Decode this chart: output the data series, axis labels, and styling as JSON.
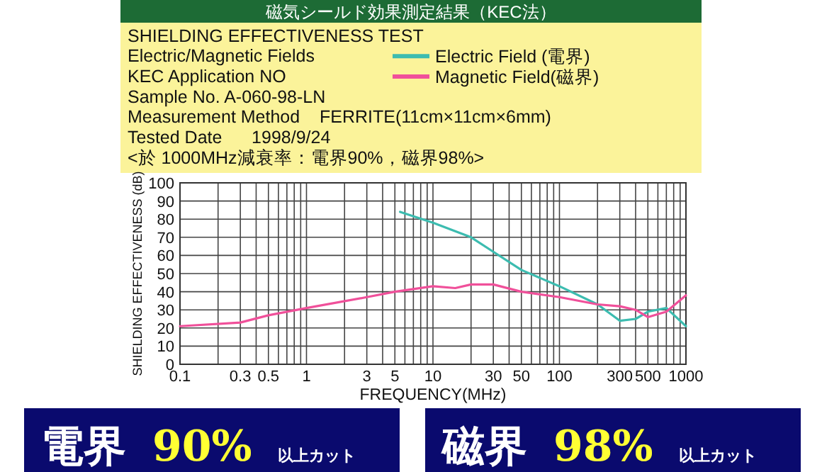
{
  "chart_data": {
    "type": "line",
    "title": "磁気シールド効果測定結果（KEC法）",
    "subtitle": "SHIELDING EFFECTIVENESS TEST",
    "xlabel": "FREQUENCY(MHz)",
    "ylabel": "SHIELDING EFFECTIVENESS (dB)",
    "annotations": [
      "Electric/Magnetic Fields",
      "KEC Application NO",
      "Sample No. A-060-98-LN",
      "Measurement Method    FERRITE(11cm×11cm×6mm)",
      "Tested Date      1998/9/24",
      "<於 1000MHz減衰率：電界90%，磁界98%>",
      "電界 90% 以上カット",
      "磁界 98% 以上カット"
    ],
    "log": "x",
    "xlim": [
      0.1,
      1000
    ],
    "xticks": [
      0.1,
      {
        "value": 0.2,
        "label": null
      },
      0.3,
      {
        "value": 0.4,
        "label": null
      },
      0.5,
      {
        "value": 0.6,
        "label": null
      },
      {
        "value": 0.7,
        "label": null
      },
      {
        "value": 0.8,
        "label": null
      },
      {
        "value": 0.9,
        "label": null
      },
      1,
      {
        "value": 2,
        "label": null
      },
      3,
      {
        "value": 4,
        "label": null
      },
      5,
      {
        "value": 6,
        "label": null
      },
      {
        "value": 7,
        "label": null
      },
      {
        "value": 8,
        "label": null
      },
      {
        "value": 9,
        "label": null
      },
      10,
      {
        "value": 20,
        "label": null
      },
      30,
      {
        "value": 40,
        "label": null
      },
      50,
      {
        "value": 60,
        "label": null
      },
      {
        "value": 70,
        "label": null
      },
      {
        "value": 80,
        "label": null
      },
      {
        "value": 90,
        "label": null
      },
      100,
      {
        "value": 200,
        "label": null
      },
      300,
      {
        "value": 400,
        "label": null
      },
      500,
      {
        "value": 600,
        "label": null
      },
      {
        "value": 700,
        "label": null
      },
      {
        "value": 800,
        "label": null
      },
      {
        "value": 900,
        "label": null
      },
      1000
    ],
    "ylim": [
      0,
      100
    ],
    "yticks": [
      0,
      10,
      20,
      30,
      40,
      50,
      60,
      70,
      80,
      90,
      100
    ],
    "grid": true,
    "legend": "top",
    "line_style": "solid",
    "marker": "none",
    "series": [
      {
        "name": "Electric Field (電界)",
        "color": "#3cbcb0",
        "x": [
          5.5,
          10,
          20,
          30,
          50,
          100,
          200,
          300,
          400,
          500,
          700,
          1000
        ],
        "values": [
          84,
          78,
          70,
          62,
          52,
          43,
          33,
          24,
          25,
          29,
          31,
          21
        ]
      },
      {
        "name": "Magnetic Field(磁界)",
        "color": "#f0509a",
        "x": [
          0.1,
          0.3,
          0.5,
          1,
          3,
          5,
          10,
          15,
          20,
          30,
          50,
          100,
          200,
          300,
          400,
          500,
          700,
          1000
        ],
        "values": [
          21,
          23,
          27,
          31,
          37,
          40,
          43,
          42,
          44,
          44,
          40,
          37,
          33,
          32,
          30,
          26,
          29,
          38
        ]
      }
    ]
  }
}
